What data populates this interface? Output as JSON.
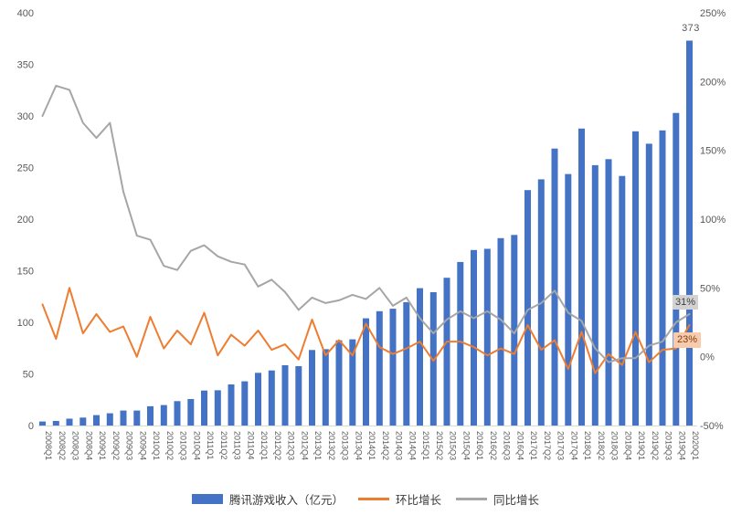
{
  "chart_data": {
    "type": "combo",
    "title": "",
    "categories": [
      "2008Q1",
      "2008Q2",
      "2008Q3",
      "2008Q4",
      "2009Q1",
      "2009Q2",
      "2009Q3",
      "2009Q4",
      "2010Q1",
      "2010Q2",
      "2010Q3",
      "2010Q4",
      "2011Q1",
      "2011Q2",
      "2011Q3",
      "2011Q4",
      "2012Q1",
      "2012Q2",
      "2012Q3",
      "2012Q4",
      "2013Q1",
      "2013Q2",
      "2013Q3",
      "2013Q4",
      "2014Q1",
      "2014Q2",
      "2014Q3",
      "2014Q4",
      "2015Q1",
      "2015Q2",
      "2015Q3",
      "2015Q4",
      "2016Q1",
      "2016Q2",
      "2016Q3",
      "2016Q4",
      "2017Q1",
      "2017Q2",
      "2017Q3",
      "2017Q4",
      "2018Q1",
      "2018Q2",
      "2018Q3",
      "2018Q4",
      "2019Q1",
      "2019Q2",
      "2019Q3",
      "2019Q4",
      "2020Q1"
    ],
    "series": [
      {
        "name": "腾讯游戏收入（亿元）",
        "chart_type": "bar",
        "axis": "left",
        "color": "#4472C4",
        "values": [
          3.9,
          4.4,
          6.6,
          7.7,
          10.1,
          11.9,
          14.5,
          14.5,
          18.7,
          19.8,
          23.6,
          25.7,
          33.9,
          34.2,
          39.8,
          42.8,
          51.1,
          53.4,
          58.4,
          57.5,
          73.2,
          74,
          82.6,
          83.5,
          103.9,
          110.8,
          113.2,
          119.6,
          133.1,
          129.2,
          143.2,
          158.5,
          170.1,
          171.2,
          181.6,
          184.7,
          228.1,
          238.6,
          268.4,
          243.7,
          287.8,
          252.3,
          258.1,
          241.9,
          285.1,
          273.1,
          286,
          302.9,
          373
        ]
      },
      {
        "name": "环比增长",
        "chart_type": "line",
        "axis": "right",
        "color": "#ED7D31",
        "values_pct": [
          38,
          13,
          50,
          17,
          31,
          18,
          22,
          0,
          29,
          6,
          19,
          9,
          32,
          1,
          16,
          8,
          19,
          5,
          9,
          -2,
          27,
          1,
          12,
          1,
          24,
          7,
          2,
          6,
          11,
          -3,
          11,
          11,
          7,
          1,
          6,
          2,
          23,
          5,
          12,
          -9,
          18,
          -12,
          2,
          -6,
          18,
          -4,
          5,
          6,
          23
        ]
      },
      {
        "name": "同比增长",
        "chart_type": "line",
        "axis": "right",
        "color": "#A6A6A6",
        "values_pct": [
          175,
          197,
          194,
          170,
          159,
          170,
          120,
          88,
          85,
          66,
          63,
          77,
          81,
          73,
          69,
          67,
          51,
          56,
          47,
          34,
          43,
          39,
          41,
          45,
          42,
          50,
          37,
          43,
          28,
          17,
          27,
          33,
          28,
          33,
          27,
          17,
          34,
          39,
          48,
          32,
          26,
          6,
          -4,
          -1,
          -1,
          8,
          11,
          25,
          31
        ]
      }
    ],
    "left_axis": {
      "min": 0,
      "max": 400,
      "step": 50,
      "ticks": [
        "400",
        "350",
        "300",
        "250",
        "200",
        "150",
        "100",
        "50",
        "0"
      ]
    },
    "right_axis": {
      "min": -50,
      "max": 250,
      "step": 50,
      "ticks": [
        "250%",
        "200%",
        "150%",
        "100%",
        "50%",
        "0%",
        "-50%"
      ]
    },
    "legend_position": "bottom",
    "grid": false,
    "annotations": {
      "last_bar_label": "373",
      "qoq_end_label": "23%",
      "qoq_label_bg": "#F8CBAD",
      "qoq_label_color": "#843C0C",
      "yoy_end_label": "31%",
      "yoy_label_bg": "#D2D2D2",
      "yoy_label_color": "#3F3F3F",
      "axis_text_color": "#595959",
      "baseline_color": "#D9D9D9"
    }
  }
}
